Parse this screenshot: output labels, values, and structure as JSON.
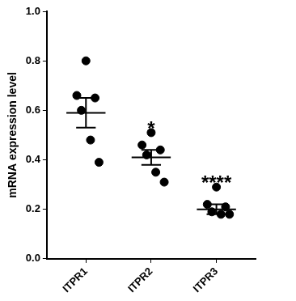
{
  "chart_data": {
    "type": "scatter",
    "y_label": "mRNA expression level",
    "categories": [
      "ITPR1",
      "ITPR2",
      "ITPR3"
    ],
    "points": [
      [
        0.8,
        0.66,
        0.65,
        0.6,
        0.48,
        0.39
      ],
      [
        0.51,
        0.46,
        0.44,
        0.42,
        0.35,
        0.31
      ],
      [
        0.29,
        0.22,
        0.21,
        0.19,
        0.18,
        0.18
      ]
    ],
    "means": [
      0.59,
      0.41,
      0.2
    ],
    "errors": [
      0.06,
      0.03,
      0.02
    ],
    "annotations": [
      {
        "category": "ITPR2",
        "text": "*"
      },
      {
        "category": "ITPR3",
        "text": "****"
      }
    ],
    "color": "#000000",
    "marker": "circle",
    "ylim": [
      0,
      1
    ],
    "yticks": [
      {
        "value": 0,
        "label": "0.0"
      },
      0.2,
      0.4,
      0.6,
      0.8,
      {
        "value": 1,
        "label": "1.0"
      }
    ],
    "grid": false
  }
}
